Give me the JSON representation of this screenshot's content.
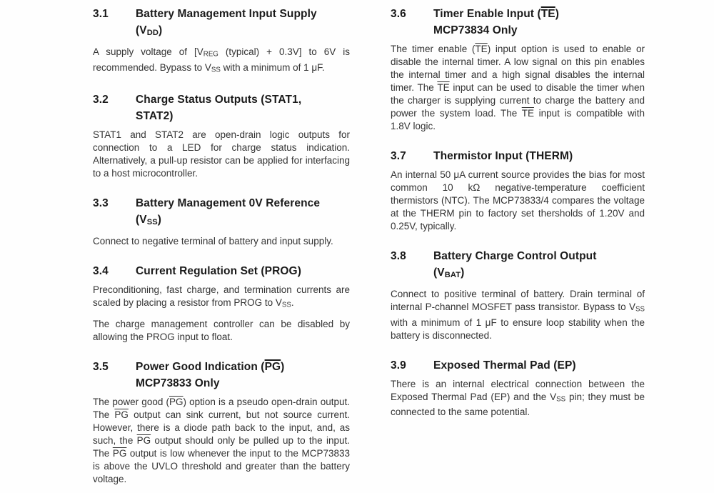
{
  "page": {
    "background": "#fefefe",
    "body_text_color": "#333333",
    "heading_text_color": "#1a1a1a"
  },
  "columns": {
    "left": {
      "sections": [
        {
          "number": "3.1",
          "title": [
            [
              {
                "t": "Battery Management Input Supply"
              }
            ],
            [
              {
                "t": "(V"
              },
              {
                "t": "DD",
                "s": "sub"
              },
              {
                "t": ")"
              }
            ]
          ],
          "paragraphs": [
            [
              {
                "t": "A supply voltage of [V"
              },
              {
                "t": "REG",
                "s": "sub"
              },
              {
                "t": " (typical) + 0.3V] to 6V is recommended. Bypass to V"
              },
              {
                "t": "SS",
                "s": "sub"
              },
              {
                "t": " with a minimum of 1 μF."
              }
            ]
          ]
        },
        {
          "number": "3.2",
          "title": [
            [
              {
                "t": "Charge Status Outputs (STAT1,"
              }
            ],
            [
              {
                "t": "STAT2)"
              }
            ]
          ],
          "paragraphs": [
            [
              {
                "t": "STAT1 and STAT2 are open-drain logic outputs for connection to a LED for charge status indication. Alternatively, a pull-up resistor can be applied for interfacing to a host microcontroller."
              }
            ]
          ]
        },
        {
          "number": "3.3",
          "title": [
            [
              {
                "t": "Battery Management 0V Reference"
              }
            ],
            [
              {
                "t": "(V"
              },
              {
                "t": "SS",
                "s": "sub"
              },
              {
                "t": ")"
              }
            ]
          ],
          "paragraphs": [
            [
              {
                "t": "Connect to negative terminal of battery and input supply."
              }
            ]
          ]
        },
        {
          "number": "3.4",
          "title": [
            [
              {
                "t": "Current Regulation Set (PROG)"
              }
            ]
          ],
          "paragraphs": [
            [
              {
                "t": "Preconditioning, fast charge, and termination currents are scaled by placing a resistor from PROG to V"
              },
              {
                "t": "SS",
                "s": "sub"
              },
              {
                "t": "."
              }
            ],
            [
              {
                "t": "The charge management controller can be disabled by allowing the PROG input to float."
              }
            ]
          ]
        },
        {
          "number": "3.5",
          "title": [
            [
              {
                "t": "Power Good Indication ("
              },
              {
                "t": "PG",
                "s": "ov"
              },
              {
                "t": ")"
              }
            ],
            [
              {
                "t": "MCP73833 Only"
              }
            ]
          ],
          "paragraphs": [
            [
              {
                "t": "The power good ("
              },
              {
                "t": "PG",
                "s": "ov"
              },
              {
                "t": ") option is a pseudo open-drain output. The "
              },
              {
                "t": "PG",
                "s": "ov"
              },
              {
                "t": " output can sink current, but not source current. However, there is a diode path back to the input, and, as such, the "
              },
              {
                "t": "PG",
                "s": "ov"
              },
              {
                "t": " output should only be pulled up to the input. The "
              },
              {
                "t": "PG",
                "s": "ov"
              },
              {
                "t": " output is low whenever the input to the MCP73833 is above the UVLO threshold and greater than the battery voltage."
              }
            ]
          ]
        }
      ]
    },
    "right": {
      "sections": [
        {
          "number": "3.6",
          "title": [
            [
              {
                "t": "Timer Enable Input ("
              },
              {
                "t": "TE",
                "s": "ov"
              },
              {
                "t": ")"
              }
            ],
            [
              {
                "t": "MCP73834 Only"
              }
            ]
          ],
          "paragraphs": [
            [
              {
                "t": "The timer enable ("
              },
              {
                "t": "TE",
                "s": "ov"
              },
              {
                "t": ") input option is used to enable or disable the internal timer. A low signal on this pin enables the internal timer and a high signal disables the internal timer. The "
              },
              {
                "t": "TE",
                "s": "ov"
              },
              {
                "t": " input can be used to disable the timer when the charger is supplying current to charge the battery and power the system load. The "
              },
              {
                "t": "TE",
                "s": "ov"
              },
              {
                "t": " input is compatible with 1.8V logic."
              }
            ]
          ]
        },
        {
          "number": "3.7",
          "title": [
            [
              {
                "t": "Thermistor Input (THERM)"
              }
            ]
          ],
          "paragraphs": [
            [
              {
                "t": "An internal 50 μA current source provides the bias for most common 10 kΩ negative-temperature coefficient thermistors (NTC). The MCP73833/4 compares the voltage at the THERM pin to factory set thersholds of 1.20V and 0.25V, typically."
              }
            ]
          ]
        },
        {
          "number": "3.8",
          "title": [
            [
              {
                "t": "Battery Charge Control Output"
              }
            ],
            [
              {
                "t": "(V"
              },
              {
                "t": "BAT",
                "s": "sub"
              },
              {
                "t": ")"
              }
            ]
          ],
          "paragraphs": [
            [
              {
                "t": "Connect to positive terminal of battery. Drain terminal of internal P-channel MOSFET pass transistor. Bypass to V"
              },
              {
                "t": "SS",
                "s": "sub"
              },
              {
                "t": " with a minimum of 1 μF to ensure loop stability when the battery is disconnected."
              }
            ]
          ]
        },
        {
          "number": "3.9",
          "title": [
            [
              {
                "t": "Exposed Thermal Pad (EP)"
              }
            ]
          ],
          "paragraphs": [
            [
              {
                "t": "There is an internal electrical connection between the Exposed Thermal Pad (EP) and the V"
              },
              {
                "t": "SS",
                "s": "sub"
              },
              {
                "t": " pin; they must be connected to the same potential."
              }
            ]
          ]
        }
      ]
    }
  }
}
